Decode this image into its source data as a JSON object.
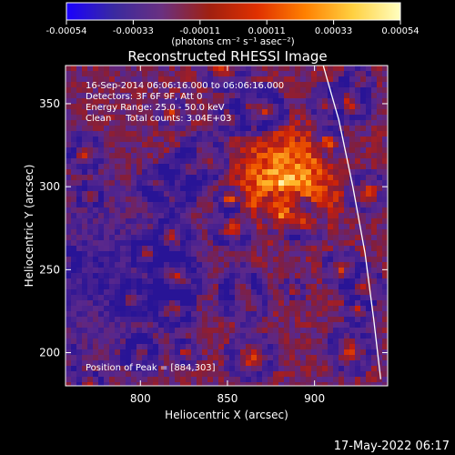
{
  "chart_data": {
    "type": "heatmap",
    "title": "Reconstructed RHESSI Image",
    "xlabel": "Heliocentric X (arcsec)",
    "ylabel": "Heliocentric Y (arcsec)",
    "xlim": [
      757,
      942
    ],
    "ylim": [
      180,
      373
    ],
    "x_ticks": [
      {
        "value": 800,
        "label": "800"
      },
      {
        "value": 850,
        "label": "850"
      },
      {
        "value": 900,
        "label": "900"
      }
    ],
    "y_ticks": [
      {
        "value": 200,
        "label": "200"
      },
      {
        "value": 250,
        "label": "250"
      },
      {
        "value": 300,
        "label": "300"
      },
      {
        "value": 350,
        "label": "350"
      }
    ],
    "colorbar": {
      "range": [
        -0.00054,
        0.00054
      ],
      "ticks": [
        "-0.00054",
        "-0.00033",
        "-0.00011",
        "0.00011",
        "0.00033",
        "0.00054"
      ],
      "unit_label": "(photons cm⁻² s⁻¹ asec⁻²)",
      "colors": [
        "#1a00ff",
        "#3a2aa0",
        "#6a3080",
        "#a02010",
        "#e03000",
        "#ff8000",
        "#ffd040",
        "#ffffc0"
      ]
    },
    "annotations": [
      "16-Sep-2014 06:06:16.000 to 06:06:16.000",
      "Detectors: 3F 6F 9F, Att 0",
      "Energy Range: 25.0 - 50.0 keV",
      "Clean     Total counts: 3.04E+03"
    ],
    "peak": {
      "x": 884,
      "y": 303,
      "label": "Position of Peak = [884,303]"
    },
    "limb_curve": [
      [
        905,
        373
      ],
      [
        914,
        340
      ],
      [
        922,
        300
      ],
      [
        929,
        260
      ],
      [
        934,
        220
      ],
      [
        938,
        184
      ]
    ]
  },
  "footer": {
    "timestamp": "17-May-2022 06:17"
  }
}
